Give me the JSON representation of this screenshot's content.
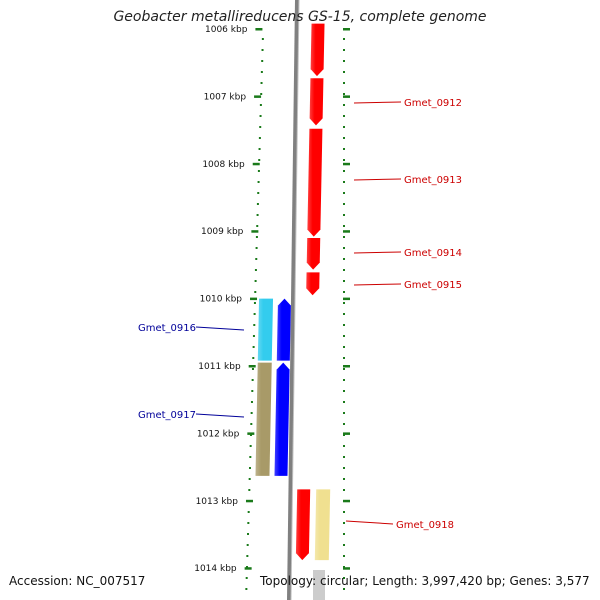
{
  "title": "Geobacter metallireducens GS-15, complete genome",
  "footer": {
    "accession": "Accession: NC_007517",
    "summary": "Topology: circular; Length: 3,997,420 bp; Genes: 3,577"
  },
  "colors": {
    "background": "#ffffff",
    "backbone": "#808080",
    "tick_dots": "#1a7a1a",
    "tick_label": "#111111",
    "forward_label": "#cc0000",
    "reverse_label": "#000099"
  },
  "ruler": {
    "unit": "kbp",
    "ticks": [
      {
        "kbp": 1006,
        "label": "1006 kbp"
      },
      {
        "kbp": 1007,
        "label": "1007 kbp"
      },
      {
        "kbp": 1008,
        "label": "1008 kbp"
      },
      {
        "kbp": 1009,
        "label": "1009 kbp"
      },
      {
        "kbp": 1010,
        "label": "1010 kbp"
      },
      {
        "kbp": 1011,
        "label": "1011 kbp"
      },
      {
        "kbp": 1012,
        "label": "1012 kbp"
      },
      {
        "kbp": 1013,
        "label": "1013 kbp"
      },
      {
        "kbp": 1014,
        "label": "1014 kbp"
      }
    ]
  },
  "genes": [
    {
      "name": "Gmet_0912",
      "strand": "+",
      "start_kbp": 1005.92,
      "end_kbp": 1006.7,
      "color": "#ff0000",
      "show_label": false
    },
    {
      "name": "Gmet_0912",
      "strand": "+",
      "start_kbp": 1006.73,
      "end_kbp": 1007.43,
      "color": "#ff0000",
      "show_label": true
    },
    {
      "name": "Gmet_0913",
      "strand": "+",
      "start_kbp": 1007.48,
      "end_kbp": 1009.08,
      "color": "#ff0000",
      "show_label": true
    },
    {
      "name": "Gmet_0914",
      "strand": "+",
      "start_kbp": 1009.1,
      "end_kbp": 1009.57,
      "color": "#ff0000",
      "show_label": true
    },
    {
      "name": "Gmet_0915",
      "strand": "+",
      "start_kbp": 1009.61,
      "end_kbp": 1009.95,
      "color": "#ff0000",
      "show_label": true
    },
    {
      "name": "Gmet_0916",
      "strand": "-",
      "start_kbp": 1010.0,
      "end_kbp": 1010.92,
      "color": "#0000ff",
      "show_label": true
    },
    {
      "name": "Gmet_0917",
      "strand": "-",
      "start_kbp": 1010.95,
      "end_kbp": 1012.63,
      "color": "#0000ff",
      "show_label": true
    },
    {
      "name": "Gmet_0918",
      "strand": "+",
      "start_kbp": 1012.83,
      "end_kbp": 1013.88,
      "color": "#ff0000",
      "show_label": true
    }
  ],
  "cds": [
    {
      "name": "Gmet_0916",
      "start_kbp": 1010.0,
      "end_kbp": 1010.92,
      "color": "#33ccee"
    },
    {
      "name": "Gmet_0917",
      "start_kbp": 1010.95,
      "end_kbp": 1012.63,
      "color": "#a89a68"
    },
    {
      "name": "Gmet_0918",
      "start_kbp": 1012.83,
      "end_kbp": 1013.88,
      "color": "#f0e090"
    }
  ]
}
